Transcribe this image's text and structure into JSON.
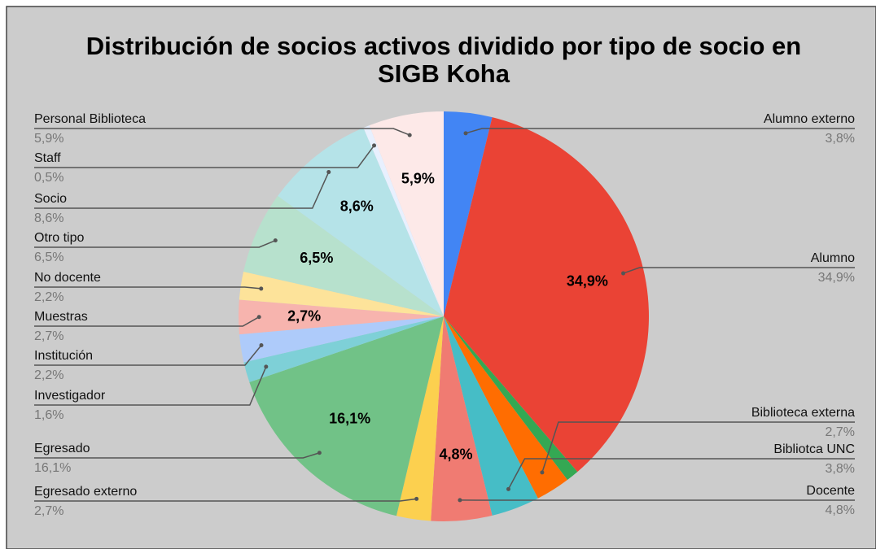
{
  "chart_data": {
    "type": "pie",
    "title": "Distribución de socios activos dividido por tipo de socio en SIGB Koha",
    "categories": [
      "Alumno externo",
      "Alumno",
      null,
      "Biblioteca externa",
      "Bibliotca UNC",
      "Docente",
      "Egresado externo",
      "Egresado",
      "Investigador",
      "Institución",
      "Muestras",
      "No docente",
      "Otro tipo",
      "Socio",
      "Staff",
      "Personal Biblioteca"
    ],
    "values": [
      3.8,
      34.9,
      1.0,
      2.7,
      3.8,
      4.8,
      2.7,
      16.1,
      1.6,
      2.2,
      2.7,
      2.2,
      6.5,
      8.6,
      0.5,
      5.9
    ],
    "value_labels": [
      "3,8%",
      "34,9%",
      null,
      "2,7%",
      "3,8%",
      "4,8%",
      "2,7%",
      "16,1%",
      "1,6%",
      "2,2%",
      "2,7%",
      "2,2%",
      "6,5%",
      "8,6%",
      "0,5%",
      "5,9%"
    ],
    "colors": [
      "#4285f4",
      "#ea4335",
      "#34a853",
      "#ff6d01",
      "#46bdc6",
      "#f07b72",
      "#fcd04f",
      "#71c287",
      "#7ed0d7",
      "#aecbfa",
      "#f7b4ae",
      "#fde39a",
      "#b7e1cd",
      "#b5e3e8",
      "#e8f0fe",
      "#fde9e8"
    ]
  }
}
